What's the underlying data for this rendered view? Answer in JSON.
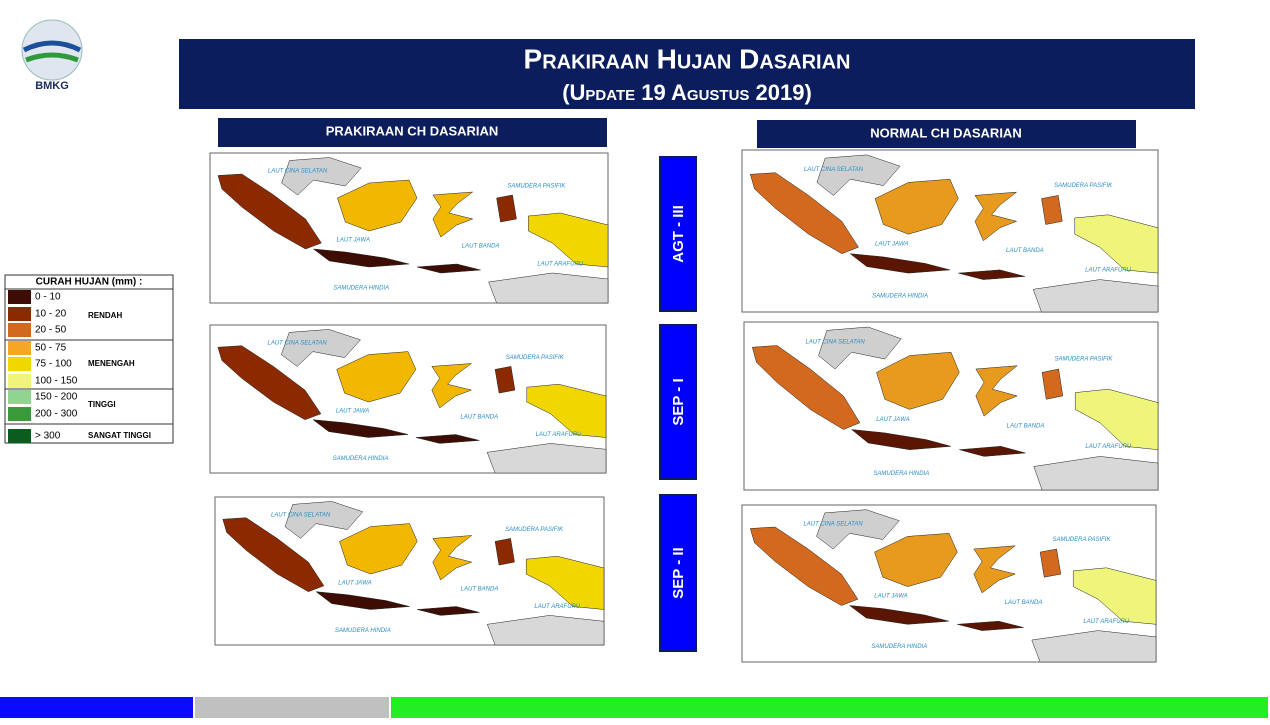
{
  "header": {
    "logo_text": "BMKG",
    "title": "Prakiraan Hujan Dasarian",
    "subtitle": "(Update 19 Agustus 2019)"
  },
  "columns": [
    "PRAKIRAAN CH DASARIAN",
    "NORMAL CH DASARIAN"
  ],
  "periods": [
    "AGT - III",
    "SEP - I",
    "SEP - II"
  ],
  "legend": {
    "title": "CURAH HUJAN (mm) :",
    "items": [
      {
        "label": "0 - 10",
        "color": "#3d0c02"
      },
      {
        "label": "10 - 20",
        "color": "#8b2a00"
      },
      {
        "label": "20 - 50",
        "color": "#d2691e"
      },
      {
        "label": "50 - 75",
        "color": "#f5a623"
      },
      {
        "label": "75 - 100",
        "color": "#f2d600"
      },
      {
        "label": "100 - 150",
        "color": "#eef57a"
      },
      {
        "label": "150 - 200",
        "color": "#8fd48f"
      },
      {
        "label": "200 - 300",
        "color": "#3a9a3a"
      },
      {
        "label": "> 300",
        "color": "#0b5d1e"
      }
    ],
    "groups": [
      "RENDAH",
      "MENENGAH",
      "TINGGI",
      "SANGAT TINGGI"
    ]
  },
  "map_labels": [
    "LAUT CINA SELATAN",
    "SAMUDERA PASIFIK",
    "LAUT JAWA",
    "LAUT BANDA",
    "LAUT ARAFURU",
    "SAMUDERA HINDIA"
  ]
}
